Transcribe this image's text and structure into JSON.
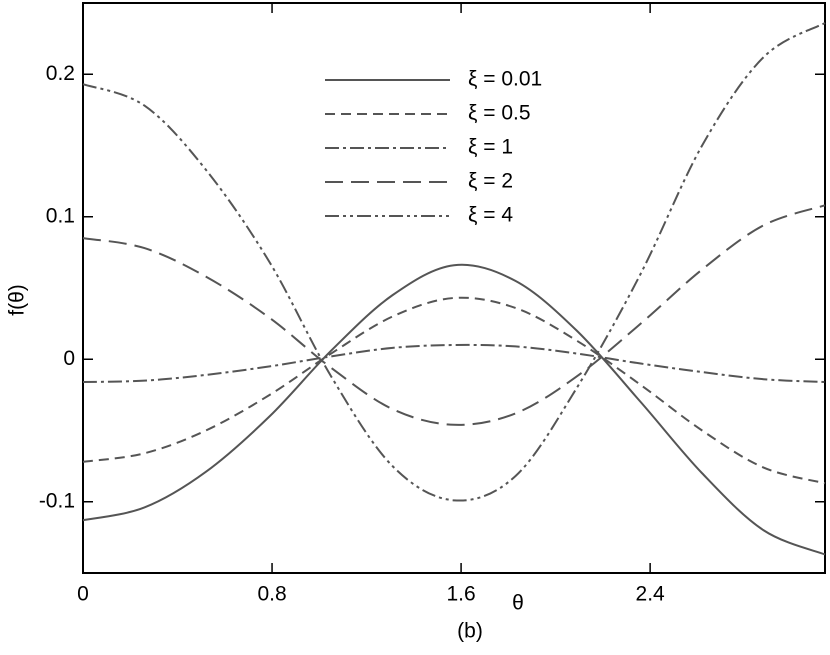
{
  "chart_data": {
    "type": "line",
    "x_label": "θ",
    "y_label": "f(θ)",
    "caption": "(b)",
    "x": [
      0,
      0.26,
      0.52,
      0.79,
      1.05,
      1.31,
      1.57,
      1.83,
      2.09,
      2.36,
      2.62,
      2.88,
      3.14
    ],
    "series": [
      {
        "name": "ξ = 0.01",
        "color": "#555555",
        "dash": "none",
        "values": [
          -0.113,
          -0.104,
          -0.079,
          -0.04,
          0.006,
          0.045,
          0.066,
          0.055,
          0.02,
          -0.03,
          -0.08,
          -0.12,
          -0.137
        ]
      },
      {
        "name": "ξ = 0.5",
        "color": "#555555",
        "dash": "10,6",
        "values": [
          -0.072,
          -0.066,
          -0.05,
          -0.025,
          0.004,
          0.03,
          0.043,
          0.036,
          0.013,
          -0.018,
          -0.05,
          -0.076,
          -0.087
        ]
      },
      {
        "name": "ξ = 1",
        "color": "#555555",
        "dash": "14,4,3,4",
        "values": [
          -0.016,
          -0.015,
          -0.011,
          -0.005,
          0.002,
          0.008,
          0.01,
          0.009,
          0.004,
          -0.003,
          -0.009,
          -0.014,
          -0.016
        ]
      },
      {
        "name": "ξ = 2",
        "color": "#555555",
        "dash": "18,8",
        "values": [
          0.085,
          0.078,
          0.058,
          0.029,
          -0.006,
          -0.035,
          -0.046,
          -0.038,
          -0.012,
          0.025,
          0.063,
          0.094,
          0.108
        ]
      },
      {
        "name": "ξ = 4",
        "color": "#555555",
        "dash": "14,4,3,4,3,4",
        "values": [
          0.193,
          0.178,
          0.133,
          0.068,
          -0.012,
          -0.075,
          -0.099,
          -0.082,
          -0.02,
          0.06,
          0.15,
          0.212,
          0.236
        ]
      }
    ],
    "xlim": [
      0,
      3.14
    ],
    "xticks": [
      0,
      0.8,
      1.6,
      2.4
    ],
    "ylim": [
      -0.15,
      0.25
    ],
    "yticks": [
      -0.1,
      0,
      0.1,
      0.2
    ]
  }
}
